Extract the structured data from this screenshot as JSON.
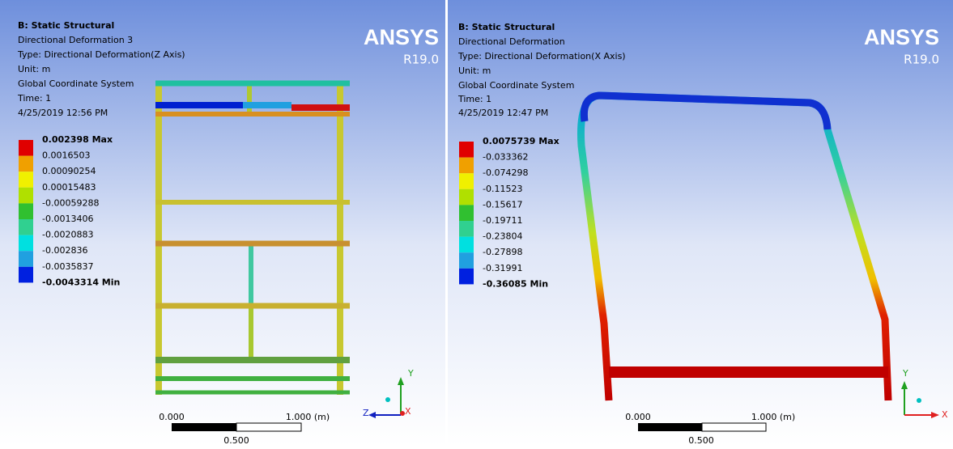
{
  "panels": [
    {
      "header": {
        "title": "B: Static Structural",
        "result": "Directional Deformation 3",
        "type": "Type: Directional Deformation(Z Axis)",
        "unit": "Unit: m",
        "coords": "Global Coordinate System",
        "time": "Time: 1",
        "date": "4/25/2019 12:56 PM"
      },
      "legend": {
        "labels": [
          "0.002398 Max",
          "0.0016503",
          "0.00090254",
          "0.00015483",
          "-0.00059288",
          "-0.0013406",
          "-0.0020883",
          "-0.002836",
          "-0.0035837",
          "-0.0043314 Min"
        ],
        "colors": [
          "#e00000",
          "#f0a000",
          "#f0f000",
          "#b0e000",
          "#30c030",
          "#30d090",
          "#00e0e0",
          "#20a0e0",
          "#0020e0"
        ]
      },
      "brand": {
        "name": "ANSYS",
        "version": "R19.0"
      },
      "scale": {
        "start": "0.000",
        "end": "1.000 (m)",
        "mid": "0.500"
      },
      "triad": {
        "y": "Y",
        "z": "Z",
        "x": "X"
      }
    },
    {
      "header": {
        "title": "B: Static Structural",
        "result": "Directional Deformation",
        "type": "Type: Directional Deformation(X Axis)",
        "unit": "Unit: m",
        "coords": "Global Coordinate System",
        "time": "Time: 1",
        "date": "4/25/2019 12:47 PM"
      },
      "legend": {
        "labels": [
          "0.0075739 Max",
          "-0.033362",
          "-0.074298",
          "-0.11523",
          "-0.15617",
          "-0.19711",
          "-0.23804",
          "-0.27898",
          "-0.31991",
          "-0.36085 Min"
        ],
        "colors": [
          "#e00000",
          "#f0a000",
          "#f0f000",
          "#b0e000",
          "#30c030",
          "#30d090",
          "#00e0e0",
          "#20a0e0",
          "#0020e0"
        ]
      },
      "brand": {
        "name": "ANSYS",
        "version": "R19.0"
      },
      "scale": {
        "start": "0.000",
        "end": "1.000 (m)",
        "mid": "0.500"
      },
      "triad": {
        "y": "Y",
        "x": "X"
      }
    }
  ]
}
